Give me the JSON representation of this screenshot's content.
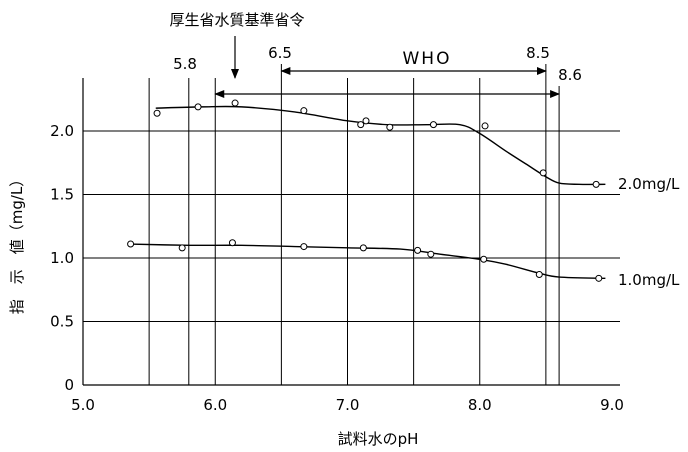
{
  "chart_data": {
    "type": "scatter",
    "xlabel": "試料水のpH",
    "ylabel": "指　示　値（mg/L）",
    "xlim": [
      5.0,
      9.0
    ],
    "ylim": [
      0,
      2.4
    ],
    "x_ticks": [
      "5.0",
      "6.0",
      "7.0",
      "8.0",
      "9.0"
    ],
    "y_ticks": [
      "0",
      "0.5",
      "1.0",
      "1.5",
      "2.0"
    ],
    "grid": true,
    "vertical_reference_lines": [
      5.5,
      5.8,
      6.0,
      6.5,
      7.0,
      7.5,
      8.0,
      8.5,
      8.6
    ],
    "ranges": [
      {
        "label": "WHO",
        "from": 6.5,
        "to": 8.5,
        "y": 2.45
      },
      {
        "label": "",
        "from": 6.0,
        "to": 8.6,
        "y": 2.28
      }
    ],
    "annotations": {
      "mhlw_label": "厚生省水質基準省令",
      "low_58": "5.8",
      "low_65": "6.5",
      "high_85": "8.5",
      "high_86": "8.6"
    },
    "series": [
      {
        "name": "2.0mg/L",
        "points": [
          [
            5.56,
            2.14
          ],
          [
            5.87,
            2.19
          ],
          [
            6.15,
            2.22
          ],
          [
            6.67,
            2.16
          ],
          [
            7.1,
            2.05
          ],
          [
            7.14,
            2.08
          ],
          [
            7.32,
            2.03
          ],
          [
            7.65,
            2.05
          ],
          [
            8.04,
            2.04
          ],
          [
            8.48,
            1.67
          ],
          [
            8.88,
            1.58
          ]
        ],
        "curve": [
          [
            5.55,
            2.18
          ],
          [
            5.9,
            2.19
          ],
          [
            6.2,
            2.19
          ],
          [
            6.6,
            2.15
          ],
          [
            7.0,
            2.08
          ],
          [
            7.3,
            2.05
          ],
          [
            7.6,
            2.05
          ],
          [
            7.85,
            2.05
          ],
          [
            8.0,
            1.98
          ],
          [
            8.2,
            1.84
          ],
          [
            8.35,
            1.74
          ],
          [
            8.5,
            1.64
          ],
          [
            8.6,
            1.59
          ],
          [
            8.75,
            1.58
          ],
          [
            8.95,
            1.58
          ]
        ]
      },
      {
        "name": "1.0mg/L",
        "points": [
          [
            5.36,
            1.11
          ],
          [
            5.75,
            1.08
          ],
          [
            6.13,
            1.12
          ],
          [
            6.67,
            1.09
          ],
          [
            7.12,
            1.08
          ],
          [
            7.53,
            1.06
          ],
          [
            7.63,
            1.03
          ],
          [
            8.03,
            0.99
          ],
          [
            8.45,
            0.87
          ],
          [
            8.9,
            0.84
          ]
        ],
        "curve": [
          [
            5.35,
            1.11
          ],
          [
            5.8,
            1.1
          ],
          [
            6.2,
            1.1
          ],
          [
            6.6,
            1.09
          ],
          [
            7.0,
            1.08
          ],
          [
            7.4,
            1.07
          ],
          [
            7.7,
            1.03
          ],
          [
            8.0,
            0.99
          ],
          [
            8.2,
            0.95
          ],
          [
            8.45,
            0.88
          ],
          [
            8.6,
            0.85
          ],
          [
            8.95,
            0.84
          ]
        ]
      }
    ]
  }
}
